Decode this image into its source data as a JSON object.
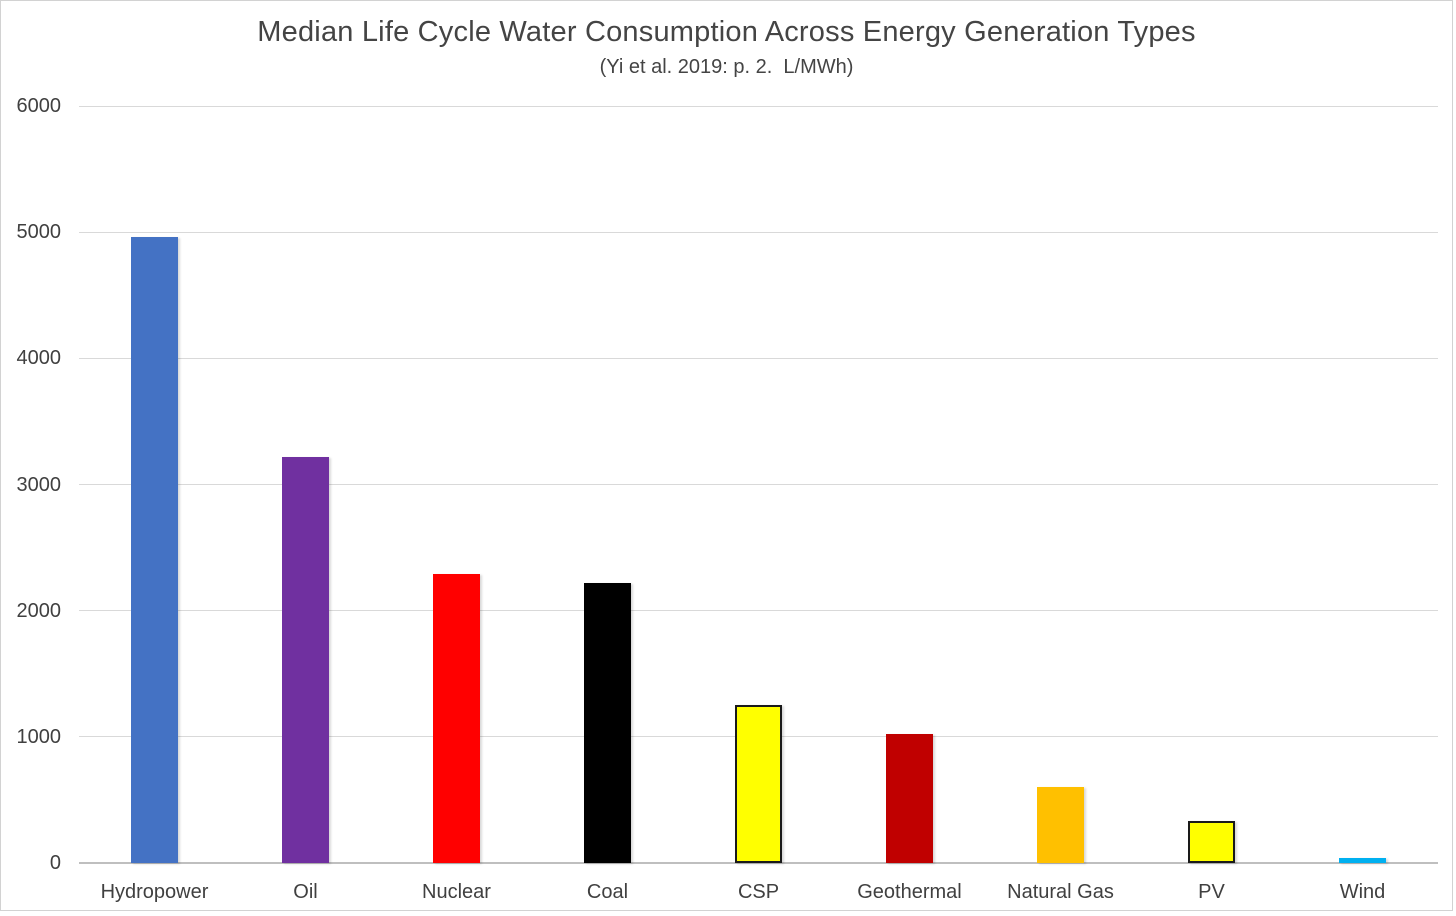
{
  "frame": {
    "background": "#FFFFFF",
    "border_color": "#D2D2D2"
  },
  "chart_data": {
    "type": "bar",
    "title": "Median Life Cycle Water Consumption Across Energy Generation Types",
    "subtitle": "(Yi et al. 2019: p. 2.  L/MWh)",
    "categories": [
      "Hydropower",
      "Oil",
      "Nuclear",
      "Coal",
      "CSP",
      "Geothermal",
      "Natural Gas",
      "PV",
      "Wind"
    ],
    "values": [
      4960,
      3220,
      2290,
      2220,
      1250,
      1020,
      600,
      330,
      40
    ],
    "bar_colors": [
      "#4472C4",
      "#7030A0",
      "#FF0000",
      "#000000",
      "#FFFF00",
      "#C00000",
      "#FFC000",
      "#FFFF00",
      "#00B0F0"
    ],
    "bar_border_colors": [
      null,
      null,
      null,
      null,
      "#1A1A1A",
      null,
      null,
      "#1A1A1A",
      null
    ],
    "xlabel": "",
    "ylabel": "",
    "ylim": [
      0,
      6000
    ],
    "yticks": [
      0,
      1000,
      2000,
      3000,
      4000,
      5000,
      6000
    ],
    "grid": true,
    "legend": false,
    "text_color": "#404040",
    "gridline_color": "#D9D9D9",
    "axis_line_color": "#BFBFBF"
  }
}
